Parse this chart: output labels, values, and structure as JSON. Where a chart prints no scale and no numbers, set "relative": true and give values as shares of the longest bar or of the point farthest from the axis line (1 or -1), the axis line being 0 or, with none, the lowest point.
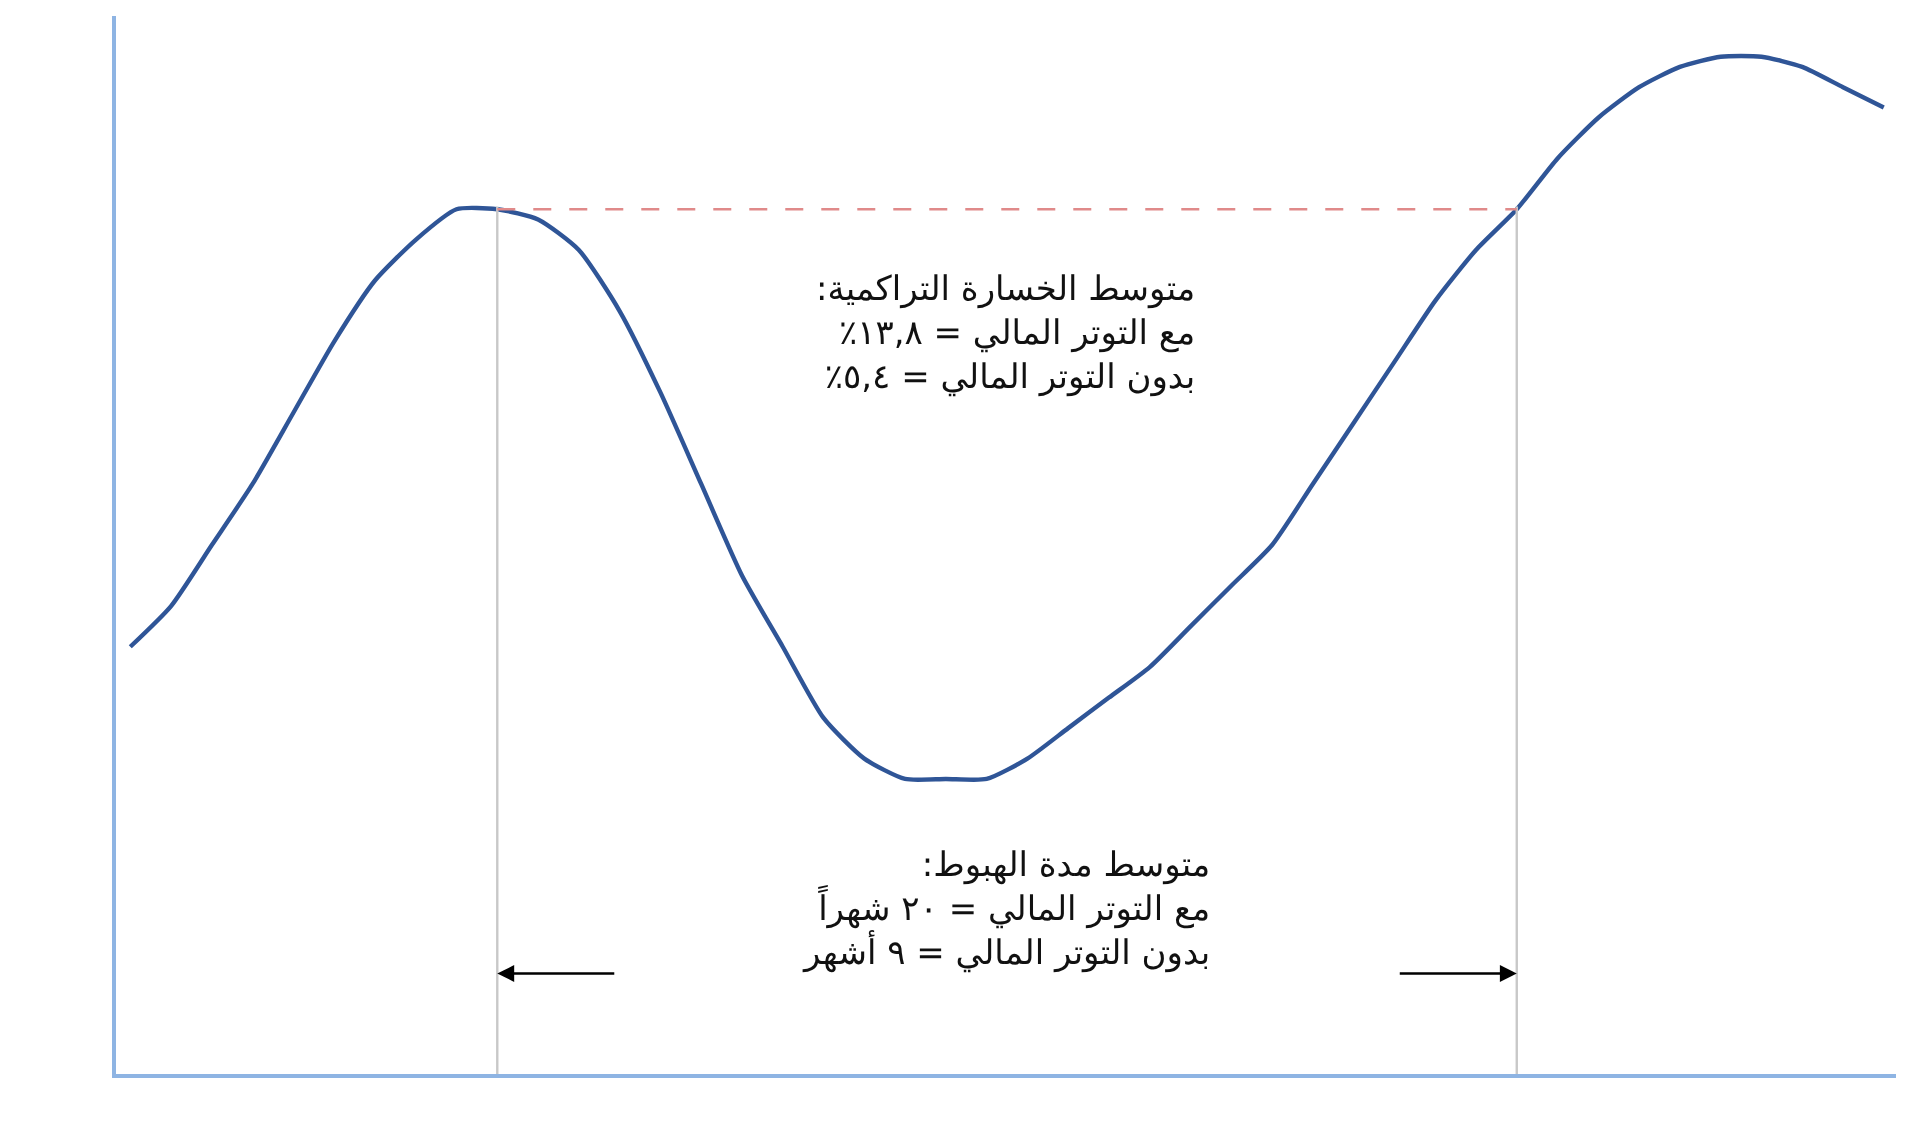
{
  "chart_data": {
    "type": "line",
    "relative": true,
    "marker": "none",
    "line_style": "solid",
    "categories": [
      null,
      null,
      null,
      null,
      null,
      null,
      null,
      null,
      null,
      null,
      null,
      null,
      null,
      null,
      null,
      null,
      null,
      null,
      null,
      null,
      null,
      null,
      null,
      null,
      null,
      null,
      null,
      null,
      null,
      null,
      null,
      null,
      null,
      null,
      null,
      null,
      null,
      null,
      null,
      null,
      null,
      null,
      null,
      null
    ],
    "series": [
      {
        "color": "#2f5597",
        "values": [
          0.42,
          0.46,
          0.52,
          0.58,
          0.65,
          0.72,
          0.78,
          0.82,
          0.85,
          0.85,
          0.84,
          0.81,
          0.75,
          0.67,
          0.58,
          0.49,
          0.42,
          0.35,
          0.31,
          0.29,
          0.29,
          0.29,
          0.31,
          0.34,
          0.37,
          0.4,
          0.44,
          0.48,
          0.52,
          0.58,
          0.64,
          0.7,
          0.76,
          0.81,
          0.85,
          0.9,
          0.94,
          0.97,
          0.99,
          1.0,
          1.0,
          0.99,
          0.97,
          0.95
        ]
      }
    ],
    "ref_lines": [
      {
        "axis": "y",
        "value": 0.85,
        "color": "#e08a8a",
        "line_style": "dashed"
      }
    ],
    "annotations": [
      "متوسط الخسارة التراكمية:\nمع التوتر المالي = ١٣,٨٪\nبدون التوتر المالي = ٥,٤٪",
      "متوسط مدة الهبوط:\nمع التوتر المالي = ٢٠ شهراً\nبدون التوتر المالي = ٩ أشهر"
    ]
  }
}
